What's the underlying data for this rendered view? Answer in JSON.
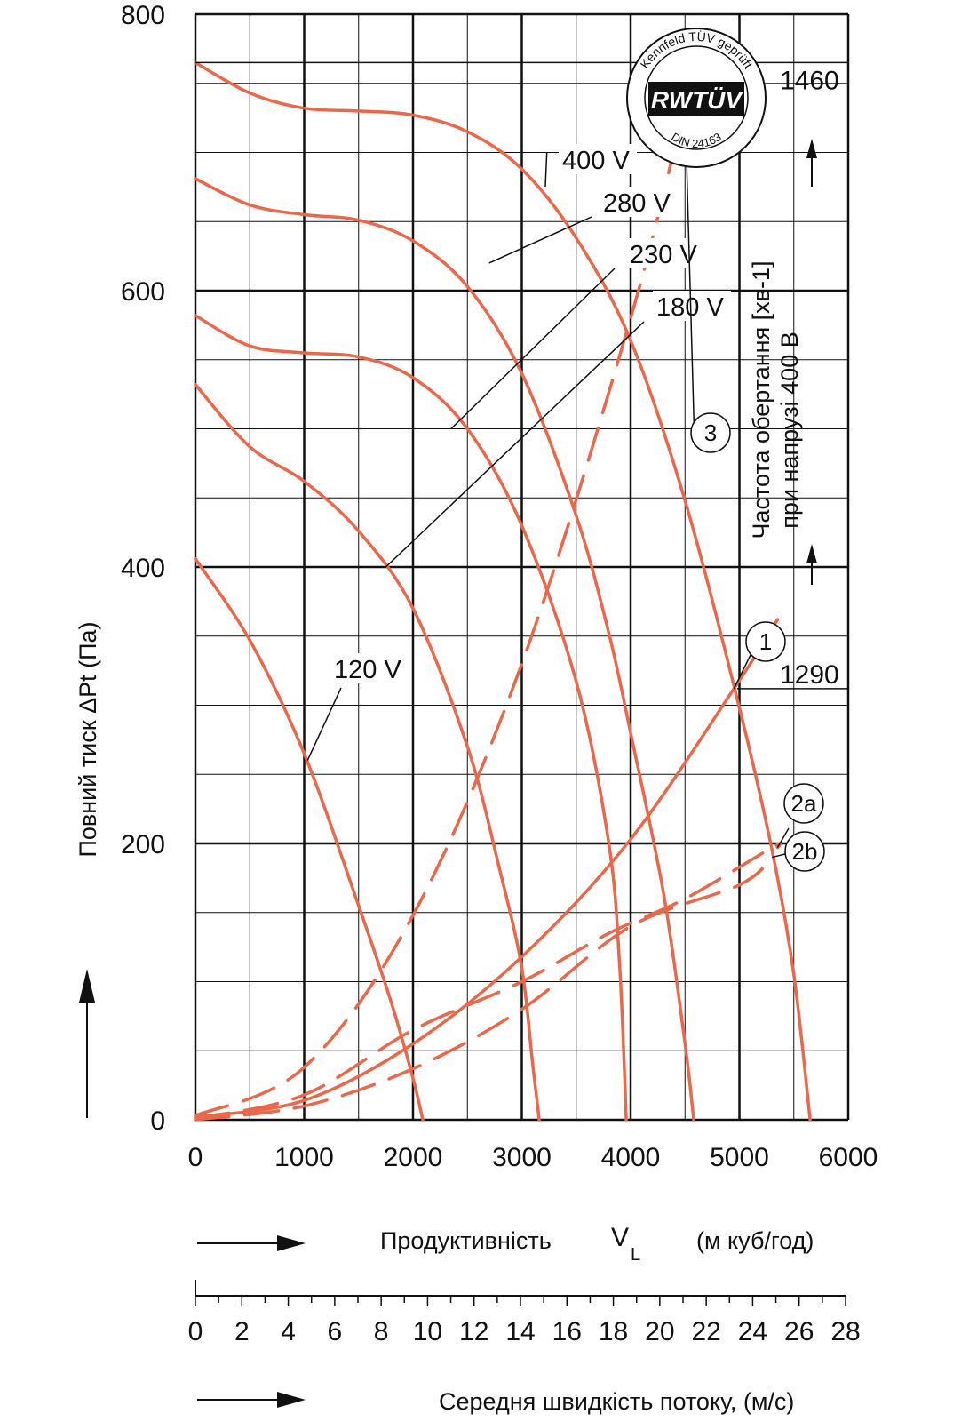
{
  "chart_data": {
    "type": "line",
    "ylabel": "Повний тиск ΔPt (Па)",
    "xlabel": "Продуктивність",
    "xlabel_symbol": "V",
    "xlabel_symbol_sub": "L",
    "xlabel_unit": "(м куб/год)",
    "x2label": "Середня швидкість потоку, (м/с)",
    "right_label_line1": "Частота  обертання [хв-1]",
    "right_label_line2": "при напрузі 400 В",
    "xlim": [
      0,
      6000
    ],
    "ylim": [
      0,
      800
    ],
    "x_ticks": [
      "0",
      "1000",
      "2000",
      "3000",
      "4000",
      "5000",
      "6000"
    ],
    "y_ticks": [
      "0",
      "200",
      "400",
      "600",
      "800"
    ],
    "x2_lim": [
      0,
      28
    ],
    "x2_ticks": [
      "0",
      "2",
      "4",
      "6",
      "8",
      "10",
      "12",
      "14",
      "16",
      "18",
      "20",
      "22",
      "24",
      "26",
      "28"
    ],
    "grid": true,
    "rpm_labels": [
      {
        "text": "1460",
        "y": 765
      },
      {
        "text": "1290",
        "y": 312
      }
    ],
    "logo": {
      "top_text": "Kennfeld TÜV geprüft",
      "main": "RWTÜV",
      "bottom_text": "DIN 24163"
    },
    "series": [
      {
        "name": "400 V",
        "color": "#e8684c",
        "points": [
          [
            0,
            765
          ],
          [
            500,
            743
          ],
          [
            1000,
            732
          ],
          [
            1500,
            730
          ],
          [
            2000,
            727
          ],
          [
            2500,
            715
          ],
          [
            3000,
            688
          ],
          [
            3500,
            638
          ],
          [
            4000,
            564
          ],
          [
            4500,
            448
          ],
          [
            5000,
            298
          ],
          [
            5300,
            195
          ],
          [
            5500,
            105
          ],
          [
            5650,
            0
          ]
        ]
      },
      {
        "name": "280 V",
        "color": "#e8684c",
        "points": [
          [
            0,
            681
          ],
          [
            500,
            662
          ],
          [
            1000,
            655
          ],
          [
            1500,
            651
          ],
          [
            2000,
            636
          ],
          [
            2500,
            603
          ],
          [
            3000,
            540
          ],
          [
            3500,
            437
          ],
          [
            3800,
            352
          ],
          [
            4000,
            280
          ],
          [
            4300,
            165
          ],
          [
            4500,
            55
          ],
          [
            4580,
            0
          ]
        ]
      },
      {
        "name": "230 V",
        "color": "#e8684c",
        "points": [
          [
            0,
            582
          ],
          [
            500,
            560
          ],
          [
            1000,
            555
          ],
          [
            1500,
            552
          ],
          [
            2000,
            537
          ],
          [
            2500,
            500
          ],
          [
            3000,
            430
          ],
          [
            3500,
            317
          ],
          [
            3800,
            200
          ],
          [
            3900,
            110
          ],
          [
            3960,
            0
          ]
        ]
      },
      {
        "name": "180 V",
        "color": "#e8684c",
        "points": [
          [
            0,
            532
          ],
          [
            500,
            487
          ],
          [
            1000,
            462
          ],
          [
            1500,
            426
          ],
          [
            2000,
            370
          ],
          [
            2500,
            270
          ],
          [
            2800,
            180
          ],
          [
            3000,
            110
          ],
          [
            3100,
            40
          ],
          [
            3160,
            0
          ]
        ]
      },
      {
        "name": "120 V",
        "color": "#e8684c",
        "points": [
          [
            0,
            406
          ],
          [
            500,
            347
          ],
          [
            1000,
            265
          ],
          [
            1500,
            155
          ],
          [
            1800,
            85
          ],
          [
            2000,
            30
          ],
          [
            2090,
            0
          ]
        ]
      }
    ],
    "system_curves": [
      {
        "name": "1",
        "style": "solid",
        "color": "#e8684c",
        "points": [
          [
            0,
            2
          ],
          [
            1000,
            14
          ],
          [
            2000,
            55
          ],
          [
            3000,
            118
          ],
          [
            4000,
            203
          ],
          [
            5000,
            318
          ],
          [
            5350,
            362
          ]
        ]
      },
      {
        "name": "3",
        "style": "dashed",
        "color": "#e8684c",
        "points": [
          [
            0,
            3
          ],
          [
            1000,
            38
          ],
          [
            2000,
            148
          ],
          [
            3000,
            330
          ],
          [
            4000,
            580
          ],
          [
            4500,
            735
          ]
        ]
      },
      {
        "name": "2a",
        "style": "dashed",
        "color": "#e8684c",
        "points": [
          [
            0,
            1
          ],
          [
            1000,
            18
          ],
          [
            2000,
            65
          ],
          [
            3000,
            100
          ],
          [
            3800,
            135
          ],
          [
            4500,
            160
          ],
          [
            5300,
            197
          ],
          [
            5350,
            197
          ]
        ]
      },
      {
        "name": "2b",
        "style": "dashed",
        "color": "#e8684c",
        "points": [
          [
            0,
            0
          ],
          [
            1000,
            10
          ],
          [
            2000,
            37
          ],
          [
            3000,
            80
          ],
          [
            4000,
            140
          ],
          [
            5000,
            170
          ],
          [
            5300,
            190
          ]
        ]
      }
    ],
    "annotations": [
      {
        "text": "400 V",
        "point": [
          3230,
          700
        ]
      },
      {
        "text": "280 V",
        "point": [
          2700,
          620
        ]
      },
      {
        "text": "230 V",
        "point": [
          2350,
          500
        ]
      },
      {
        "text": "180 V",
        "point": [
          1750,
          400
        ]
      },
      {
        "text": "120 V",
        "point": [
          1030,
          260
        ]
      },
      {
        "text": "3",
        "point": [
          4500,
          735
        ]
      },
      {
        "text": "1",
        "point": [
          4950,
          312
        ]
      },
      {
        "text": "2a",
        "point": [
          5350,
          197
        ]
      },
      {
        "text": "2b",
        "point": [
          5300,
          190
        ]
      }
    ]
  }
}
